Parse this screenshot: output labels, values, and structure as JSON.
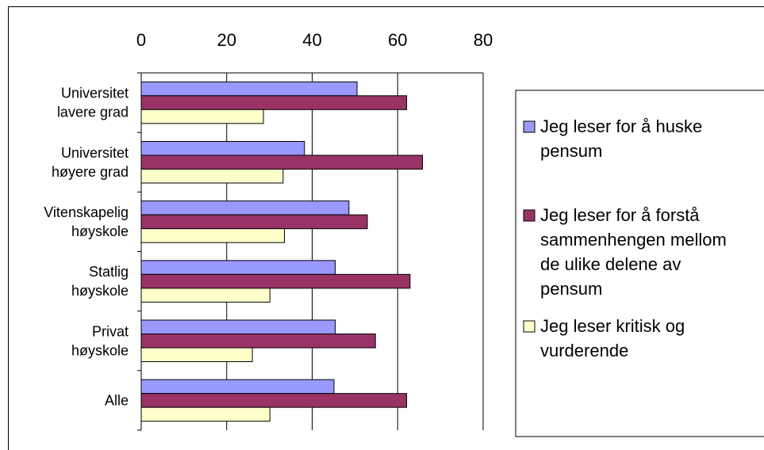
{
  "chart_data": {
    "type": "bar",
    "orientation": "horizontal",
    "xlim": [
      0,
      80
    ],
    "xticks": [
      "0",
      "20",
      "40",
      "60",
      "80"
    ],
    "grid": true,
    "legend_position": "right",
    "categories": [
      [
        "Universitet",
        "lavere grad"
      ],
      [
        "Universitet",
        "høyere grad"
      ],
      [
        "Vitenskapelig",
        "høyskole"
      ],
      [
        "Statlig",
        "høyskole"
      ],
      [
        "Privat",
        "høyskole"
      ],
      [
        "Alle"
      ]
    ],
    "series": [
      {
        "name": "Jeg leser for å huske pensum",
        "legend_lines": [
          "Jeg leser for å huske",
          "pensum"
        ],
        "color": "#9999ff",
        "values": [
          50.5,
          38.2,
          48.6,
          45.4,
          45.4,
          45.1
        ]
      },
      {
        "name": "Jeg leser for å forstå sammenhengen mellom de ulike delene av pensum",
        "legend_lines": [
          "Jeg leser for å forstå",
          "sammenhengen mellom",
          "de ulike delene av",
          "pensum"
        ],
        "color": "#993366",
        "values": [
          62.1,
          65.8,
          52.9,
          62.9,
          54.8,
          62.1
        ]
      },
      {
        "name": "Jeg leser kritisk og vurderende",
        "legend_lines": [
          "Jeg leser kritisk og",
          "vurderende"
        ],
        "color": "#ffffcc",
        "values": [
          28.6,
          33.2,
          33.5,
          30.1,
          26.0,
          30.1
        ]
      }
    ]
  }
}
